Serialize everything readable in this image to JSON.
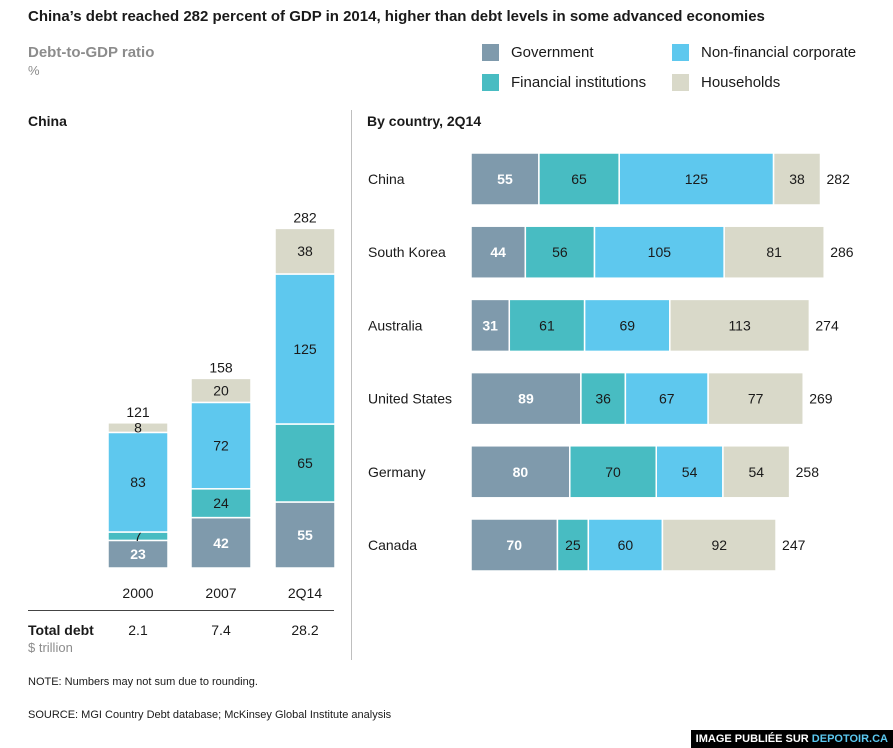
{
  "title": "China’s debt reached 282 percent of GDP in 2014, higher than debt levels in some advanced economies",
  "subtitle": "Debt-to-GDP ratio",
  "unit": "%",
  "legend": [
    {
      "name": "Government",
      "color": "#7f9aac"
    },
    {
      "name": "Non-financial corporate",
      "color": "#5ec8ee"
    },
    {
      "name": "Financial institutions",
      "color": "#48bcc2"
    },
    {
      "name": "Households",
      "color": "#d9d9c9"
    }
  ],
  "panels": {
    "left_title": "China",
    "right_title": "By country, 2Q14"
  },
  "total_debt": {
    "label": "Total debt",
    "unit": "$ trillion",
    "values": [
      "2.1",
      "7.4",
      "28.2"
    ]
  },
  "chart_data": [
    {
      "type": "bar",
      "stacked": true,
      "orientation": "vertical",
      "title": "China",
      "categories": [
        "2000",
        "2007",
        "2Q14"
      ],
      "series": [
        {
          "name": "Government",
          "values": [
            23,
            42,
            55
          ]
        },
        {
          "name": "Financial institutions",
          "values": [
            7,
            24,
            65
          ]
        },
        {
          "name": "Non-financial corporate",
          "values": [
            83,
            72,
            125
          ]
        },
        {
          "name": "Households",
          "values": [
            8,
            20,
            38
          ]
        }
      ],
      "totals": [
        121,
        158,
        282
      ]
    },
    {
      "type": "bar",
      "stacked": true,
      "orientation": "horizontal",
      "title": "By country, 2Q14",
      "categories": [
        "China",
        "South Korea",
        "Australia",
        "United States",
        "Germany",
        "Canada"
      ],
      "series": [
        {
          "name": "Government",
          "values": [
            55,
            44,
            31,
            89,
            80,
            70
          ]
        },
        {
          "name": "Financial institutions",
          "values": [
            65,
            56,
            61,
            36,
            70,
            25
          ]
        },
        {
          "name": "Non-financial corporate",
          "values": [
            125,
            105,
            69,
            67,
            54,
            60
          ]
        },
        {
          "name": "Households",
          "values": [
            38,
            81,
            113,
            77,
            54,
            92
          ]
        }
      ],
      "totals": [
        282,
        286,
        274,
        269,
        258,
        247
      ]
    }
  ],
  "note": "NOTE: Numbers may not sum due to rounding.",
  "source": "SOURCE:  MGI Country Debt database; McKinsey Global Institute analysis",
  "watermark": {
    "prefix": "IMAGE PUBLIÉE SUR ",
    "site": "DEPOTOIR.CA"
  }
}
